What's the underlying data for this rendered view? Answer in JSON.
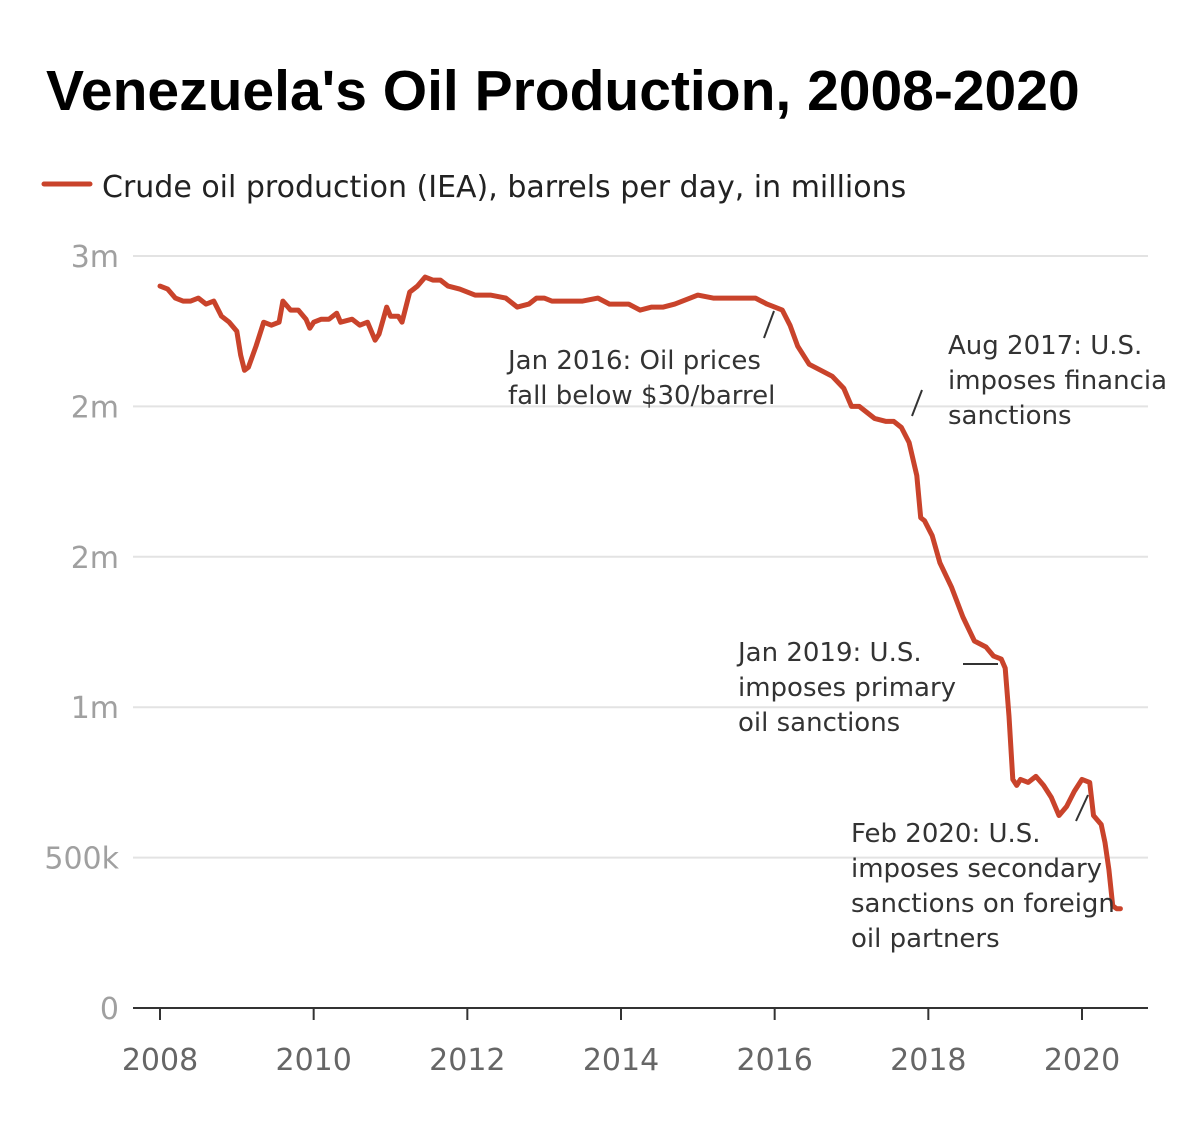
{
  "title": "Venezuela's Oil Production, 2008-2020",
  "line_color": "#c9432b",
  "chart_data": {
    "type": "line",
    "title": "Venezuela's Oil Production, 2008-2020",
    "xlabel": "",
    "ylabel": "",
    "xlim": [
      2008,
      2020.9
    ],
    "ylim": [
      0,
      2.5
    ],
    "grid": true,
    "legend_position": "top-left",
    "y_ticks": [
      {
        "value": 0,
        "label": "0"
      },
      {
        "value": 0.5,
        "label": "500k"
      },
      {
        "value": 1.0,
        "label": "1m"
      },
      {
        "value": 1.5,
        "label": "2m"
      },
      {
        "value": 2.0,
        "label": "2m"
      },
      {
        "value": 2.5,
        "label": "3m"
      }
    ],
    "x_ticks": [
      {
        "value": 2008,
        "label": "2008"
      },
      {
        "value": 2010,
        "label": "2010"
      },
      {
        "value": 2012,
        "label": "2012"
      },
      {
        "value": 2014,
        "label": "2014"
      },
      {
        "value": 2016,
        "label": "2016"
      },
      {
        "value": 2018,
        "label": "2018"
      },
      {
        "value": 2020,
        "label": "2020"
      }
    ],
    "series": [
      {
        "name": "Crude oil production (IEA), barrels per day, in millions",
        "color": "#c9432b",
        "points": [
          [
            2008.0,
            2.4
          ],
          [
            2008.1,
            2.39
          ],
          [
            2008.2,
            2.36
          ],
          [
            2008.3,
            2.35
          ],
          [
            2008.4,
            2.35
          ],
          [
            2008.5,
            2.36
          ],
          [
            2008.6,
            2.34
          ],
          [
            2008.7,
            2.35
          ],
          [
            2008.8,
            2.3
          ],
          [
            2008.9,
            2.28
          ],
          [
            2009.0,
            2.25
          ],
          [
            2009.05,
            2.17
          ],
          [
            2009.1,
            2.12
          ],
          [
            2009.15,
            2.13
          ],
          [
            2009.25,
            2.2
          ],
          [
            2009.35,
            2.28
          ],
          [
            2009.45,
            2.27
          ],
          [
            2009.55,
            2.28
          ],
          [
            2009.6,
            2.35
          ],
          [
            2009.7,
            2.32
          ],
          [
            2009.8,
            2.32
          ],
          [
            2009.9,
            2.29
          ],
          [
            2009.95,
            2.26
          ],
          [
            2010.0,
            2.28
          ],
          [
            2010.1,
            2.29
          ],
          [
            2010.2,
            2.29
          ],
          [
            2010.3,
            2.31
          ],
          [
            2010.35,
            2.28
          ],
          [
            2010.5,
            2.29
          ],
          [
            2010.6,
            2.27
          ],
          [
            2010.7,
            2.28
          ],
          [
            2010.8,
            2.22
          ],
          [
            2010.85,
            2.24
          ],
          [
            2010.95,
            2.33
          ],
          [
            2011.0,
            2.3
          ],
          [
            2011.1,
            2.3
          ],
          [
            2011.15,
            2.28
          ],
          [
            2011.25,
            2.38
          ],
          [
            2011.35,
            2.4
          ],
          [
            2011.45,
            2.43
          ],
          [
            2011.55,
            2.42
          ],
          [
            2011.65,
            2.42
          ],
          [
            2011.75,
            2.4
          ],
          [
            2011.9,
            2.39
          ],
          [
            2012.1,
            2.37
          ],
          [
            2012.3,
            2.37
          ],
          [
            2012.5,
            2.36
          ],
          [
            2012.65,
            2.33
          ],
          [
            2012.8,
            2.34
          ],
          [
            2012.9,
            2.36
          ],
          [
            2013.0,
            2.36
          ],
          [
            2013.1,
            2.35
          ],
          [
            2013.3,
            2.35
          ],
          [
            2013.5,
            2.35
          ],
          [
            2013.7,
            2.36
          ],
          [
            2013.85,
            2.34
          ],
          [
            2014.0,
            2.34
          ],
          [
            2014.1,
            2.34
          ],
          [
            2014.25,
            2.32
          ],
          [
            2014.4,
            2.33
          ],
          [
            2014.55,
            2.33
          ],
          [
            2014.7,
            2.34
          ],
          [
            2014.8,
            2.35
          ],
          [
            2014.9,
            2.36
          ],
          [
            2015.0,
            2.37
          ],
          [
            2015.2,
            2.36
          ],
          [
            2015.4,
            2.36
          ],
          [
            2015.6,
            2.36
          ],
          [
            2015.75,
            2.36
          ],
          [
            2015.9,
            2.34
          ],
          [
            2016.0,
            2.33
          ],
          [
            2016.1,
            2.32
          ],
          [
            2016.2,
            2.27
          ],
          [
            2016.3,
            2.2
          ],
          [
            2016.45,
            2.14
          ],
          [
            2016.6,
            2.12
          ],
          [
            2016.75,
            2.1
          ],
          [
            2016.9,
            2.06
          ],
          [
            2017.0,
            2.0
          ],
          [
            2017.1,
            2.0
          ],
          [
            2017.3,
            1.96
          ],
          [
            2017.45,
            1.95
          ],
          [
            2017.55,
            1.95
          ],
          [
            2017.65,
            1.93
          ],
          [
            2017.75,
            1.88
          ],
          [
            2017.85,
            1.77
          ],
          [
            2017.9,
            1.63
          ],
          [
            2017.95,
            1.62
          ],
          [
            2018.05,
            1.57
          ],
          [
            2018.15,
            1.48
          ],
          [
            2018.3,
            1.4
          ],
          [
            2018.45,
            1.3
          ],
          [
            2018.6,
            1.22
          ],
          [
            2018.75,
            1.2
          ],
          [
            2018.85,
            1.17
          ],
          [
            2018.95,
            1.16
          ],
          [
            2019.0,
            1.13
          ],
          [
            2019.05,
            0.97
          ],
          [
            2019.1,
            0.76
          ],
          [
            2019.15,
            0.74
          ],
          [
            2019.2,
            0.76
          ],
          [
            2019.3,
            0.75
          ],
          [
            2019.4,
            0.77
          ],
          [
            2019.5,
            0.74
          ],
          [
            2019.6,
            0.7
          ],
          [
            2019.7,
            0.64
          ],
          [
            2019.8,
            0.67
          ],
          [
            2019.9,
            0.72
          ],
          [
            2020.0,
            0.76
          ],
          [
            2020.1,
            0.75
          ],
          [
            2020.15,
            0.64
          ],
          [
            2020.25,
            0.61
          ],
          [
            2020.3,
            0.55
          ],
          [
            2020.35,
            0.46
          ],
          [
            2020.4,
            0.34
          ],
          [
            2020.45,
            0.33
          ],
          [
            2020.5,
            0.33
          ]
        ]
      }
    ],
    "annotations": [
      {
        "lines": [
          "Jan 2016: Oil prices",
          "fall below $30/barrel"
        ]
      },
      {
        "lines": [
          "Aug 2017: U.S.",
          "imposes financia",
          "sanctions"
        ]
      },
      {
        "lines": [
          "Jan 2019: U.S.",
          "imposes primary",
          "oil sanctions"
        ]
      },
      {
        "lines": [
          "Feb 2020: U.S.",
          "imposes secondary",
          "sanctions on foreign",
          "oil partners"
        ]
      }
    ]
  }
}
